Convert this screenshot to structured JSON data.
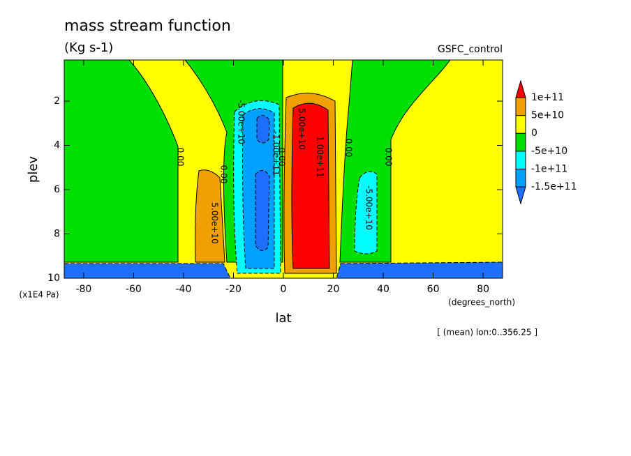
{
  "chart_data": {
    "type": "contour",
    "title": "mass stream function",
    "subtitle": "(Kg s-1)",
    "experiment": "GSFC_control",
    "x_label": "lat",
    "x_unit": "(degrees_north)",
    "y_label": "plev",
    "y_unit": "(x1E4 Pa)",
    "note": "[ (mean) lon:0..356.25 ]",
    "xlim": [
      -87.8,
      87.8
    ],
    "xticks": [
      -80,
      -60,
      -40,
      -20,
      0,
      20,
      40,
      60,
      80
    ],
    "ylim": [
      10,
      0.14
    ],
    "yticks": [
      2,
      4,
      6,
      8,
      10
    ],
    "colorbar": {
      "levels": [
        {
          "value": -150000000000,
          "label": "-1.5e+11"
        },
        {
          "value": -100000000000,
          "label": "-1e+11"
        },
        {
          "value": -50000000000,
          "label": "-5e+10"
        },
        0,
        {
          "value": 50000000000,
          "label": "5e+10"
        },
        {
          "value": 100000000000,
          "label": "1e+11"
        }
      ],
      "colors": [
        "#1e6eff",
        "#00a0ff",
        "#00ffff",
        "#00e000",
        "#ffff00",
        "#f0a000",
        "#ff0000"
      ]
    },
    "contour_labels": [
      "0.00",
      "0.00",
      "-5.00e+10",
      "-1.00e+11",
      "0.00",
      "5.00e+10",
      "1.00e+11",
      "0.00",
      "-5.00e+10",
      "0.00",
      "5.00e+10"
    ]
  }
}
